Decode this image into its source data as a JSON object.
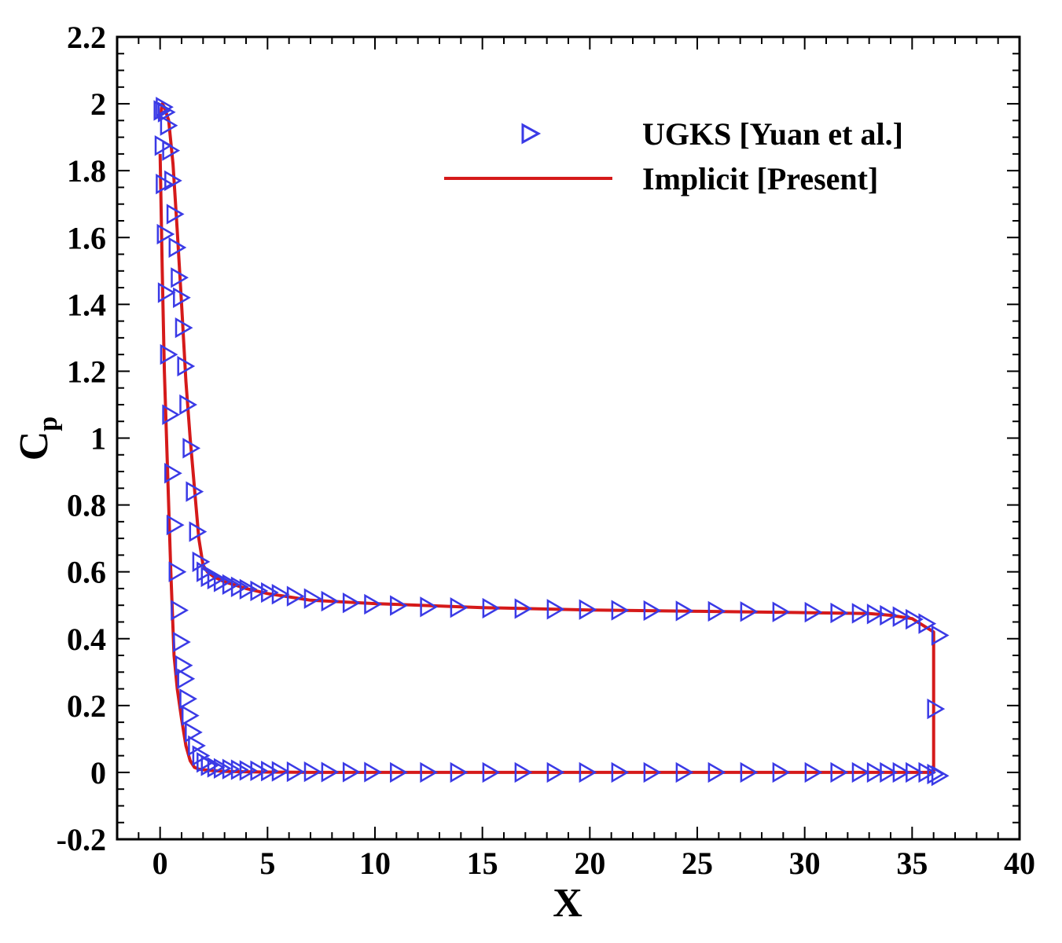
{
  "colors": {
    "ugks": "#3a3ae6",
    "implicit": "#d51a1a",
    "frame": "#000000"
  },
  "chart_data": {
    "type": "line",
    "title": "",
    "xlabel": "X",
    "ylabel": "C",
    "ylabel_subscript": "p",
    "xlim": [
      -2,
      40
    ],
    "ylim": [
      -0.2,
      2.2
    ],
    "x_ticks": [
      "0",
      "5",
      "10",
      "15",
      "20",
      "25",
      "30",
      "35",
      "40"
    ],
    "y_ticks": [
      "-0.2",
      "0",
      "0.2",
      "0.4",
      "0.6",
      "0.8",
      "1",
      "1.2",
      "1.4",
      "1.6",
      "1.8",
      "2",
      "2.2"
    ],
    "grid": false,
    "legend_position": "top-right",
    "series": [
      {
        "name": "UGKS [Yuan et al.]",
        "style": "marker",
        "marker": "triangle-right",
        "x": [
          0.0,
          0.05,
          0.1,
          0.15,
          0.2,
          0.3,
          0.4,
          0.5,
          0.6,
          0.7,
          0.8,
          0.9,
          1.0,
          1.1,
          1.2,
          1.3,
          1.45,
          1.6,
          1.8,
          2.0,
          2.2,
          2.5,
          2.8,
          3.2,
          3.6,
          4.0,
          4.5,
          5.0,
          5.5,
          6.2,
          7.0,
          7.8,
          8.8,
          9.8,
          11.0,
          12.4,
          13.8,
          15.3,
          16.8,
          18.3,
          19.8,
          21.3,
          22.8,
          24.3,
          25.8,
          27.3,
          28.8,
          30.3,
          31.5,
          32.5,
          33.2,
          33.8,
          34.4,
          35.0,
          35.6,
          36.0,
          36.0,
          36.2,
          36.2,
          35.6,
          35.0,
          34.4,
          33.8,
          33.2,
          32.5,
          31.5,
          30.3,
          28.8,
          27.3,
          25.8,
          24.3,
          22.8,
          21.3,
          19.8,
          18.3,
          16.8,
          15.3,
          13.8,
          12.4,
          11.0,
          9.8,
          8.8,
          7.8,
          7.0,
          6.2,
          5.5,
          5.0,
          4.5,
          4.0,
          3.6,
          3.2,
          2.8,
          2.5,
          2.2,
          2.0,
          1.8,
          1.65,
          1.5,
          1.35,
          1.2,
          1.1,
          1.0,
          0.9,
          0.8,
          0.7,
          0.6,
          0.5,
          0.4,
          0.3,
          0.2,
          0.1
        ],
        "y": [
          1.98,
          1.875,
          1.76,
          1.61,
          1.435,
          1.25,
          1.07,
          0.895,
          0.74,
          0.6,
          0.485,
          0.39,
          0.32,
          0.28,
          0.22,
          0.17,
          0.12,
          0.08,
          0.05,
          0.03,
          0.02,
          0.015,
          0.012,
          0.01,
          0.008,
          0.006,
          0.005,
          0.004,
          0.003,
          0.002,
          0.002,
          0.001,
          0.001,
          0.001,
          0.0,
          0.0,
          0.0,
          0.0,
          0.0,
          0.0,
          0.0,
          0.0,
          0.0,
          0.0,
          0.0,
          0.0,
          0.0,
          0.0,
          0.0,
          0.0,
          0.0,
          0.0,
          0.0,
          0.0,
          0.0,
          -0.005,
          0.19,
          -0.01,
          0.41,
          0.445,
          0.458,
          0.466,
          0.47,
          0.474,
          0.476,
          0.477,
          0.479,
          0.48,
          0.481,
          0.482,
          0.483,
          0.484,
          0.485,
          0.487,
          0.488,
          0.49,
          0.491,
          0.493,
          0.495,
          0.499,
          0.503,
          0.507,
          0.512,
          0.52,
          0.527,
          0.533,
          0.538,
          0.543,
          0.548,
          0.555,
          0.562,
          0.57,
          0.578,
          0.585,
          0.6,
          0.63,
          0.72,
          0.84,
          0.97,
          1.1,
          1.215,
          1.33,
          1.42,
          1.48,
          1.57,
          1.67,
          1.77,
          1.86,
          1.935,
          1.975,
          1.99
        ]
      },
      {
        "name": "Implicit [Present]",
        "style": "line",
        "x": [
          0.0,
          0.1,
          0.2,
          0.35,
          0.5,
          0.65,
          0.8,
          1.0,
          1.2,
          1.4,
          1.6,
          1.8,
          2.0,
          2.5,
          3.0,
          4.0,
          5.0,
          7.0,
          10.0,
          15.0,
          20.0,
          25.0,
          30.0,
          33.0,
          34.0,
          34.6,
          35.0,
          35.5,
          35.8,
          36.0,
          36.0,
          36.0,
          35.0,
          34.0,
          33.0,
          30.0,
          25.0,
          20.0,
          15.0,
          10.0,
          7.0,
          5.0,
          4.0,
          3.0,
          2.5,
          2.2,
          2.0,
          1.8,
          1.6,
          1.4,
          1.2,
          1.0,
          0.8,
          0.6,
          0.4,
          0.2,
          0.1,
          0.0
        ],
        "y": [
          1.85,
          1.5,
          1.2,
          0.9,
          0.6,
          0.35,
          0.25,
          0.16,
          0.08,
          0.035,
          0.015,
          0.01,
          0.008,
          0.005,
          0.003,
          0.002,
          0.001,
          0.0,
          0.0,
          0.0,
          0.0,
          0.0,
          0.0,
          0.0,
          0.0,
          0.0,
          0.0,
          0.0,
          0.0,
          0.0,
          0.22,
          0.42,
          0.46,
          0.47,
          0.475,
          0.478,
          0.482,
          0.486,
          0.493,
          0.505,
          0.515,
          0.535,
          0.55,
          0.57,
          0.585,
          0.6,
          0.62,
          0.7,
          0.85,
          1.0,
          1.17,
          1.4,
          1.62,
          1.82,
          1.95,
          1.99,
          2.0,
          1.95
        ]
      }
    ]
  }
}
